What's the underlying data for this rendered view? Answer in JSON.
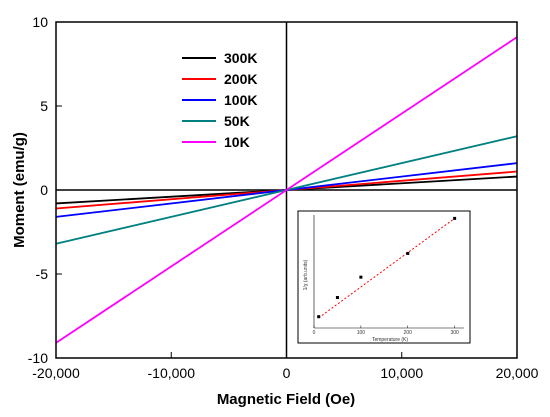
{
  "chart_data": [
    {
      "type": "line",
      "title": "",
      "xlabel": "Magnetic Field (Oe)",
      "ylabel": "Moment (emu/g)",
      "xlim": [
        -20000,
        20000
      ],
      "ylim": [
        -10,
        10
      ],
      "xticks": [
        -20000,
        -10000,
        0,
        10000,
        20000
      ],
      "xtick_labels": [
        "-20,000",
        "-10,000",
        "0",
        "10,000",
        "20,000"
      ],
      "yticks": [
        -10,
        -5,
        0,
        5,
        10
      ],
      "ytick_labels": [
        "-10",
        "-5",
        "0",
        "5",
        "10"
      ],
      "zero_lines": true,
      "grid": false,
      "legend_position": "top-left",
      "series": [
        {
          "name": "300K",
          "color": "#000000",
          "x": [
            -20000,
            20000
          ],
          "y": [
            -0.8,
            0.8
          ]
        },
        {
          "name": "200K",
          "color": "#ff0000",
          "x": [
            -20000,
            20000
          ],
          "y": [
            -1.1,
            1.1
          ]
        },
        {
          "name": "100K",
          "color": "#0000ff",
          "x": [
            -20000,
            20000
          ],
          "y": [
            -1.6,
            1.6
          ]
        },
        {
          "name": "50K",
          "color": "#008080",
          "x": [
            -20000,
            20000
          ],
          "y": [
            -3.2,
            3.2
          ]
        },
        {
          "name": "10K",
          "color": "#ff00ff",
          "x": [
            -20000,
            20000
          ],
          "y": [
            -9.1,
            9.1
          ]
        }
      ]
    },
    {
      "type": "scatter",
      "title": "",
      "xlabel": "Temperature (K)",
      "ylabel": "1/χ (arb.units)",
      "xlim": [
        0,
        320
      ],
      "ylim": [
        0,
        1
      ],
      "xticks": [
        0,
        100,
        200,
        300
      ],
      "xtick_labels": [
        "0",
        "100",
        "200",
        "300"
      ],
      "legend_position": "none",
      "points": {
        "x": [
          10,
          50,
          100,
          200,
          300
        ],
        "y": [
          0.1,
          0.27,
          0.45,
          0.66,
          0.97
        ]
      },
      "fit": {
        "color": "#ff0000",
        "style": "dotted",
        "x": [
          10,
          300
        ],
        "y": [
          0.09,
          0.97
        ]
      }
    }
  ]
}
